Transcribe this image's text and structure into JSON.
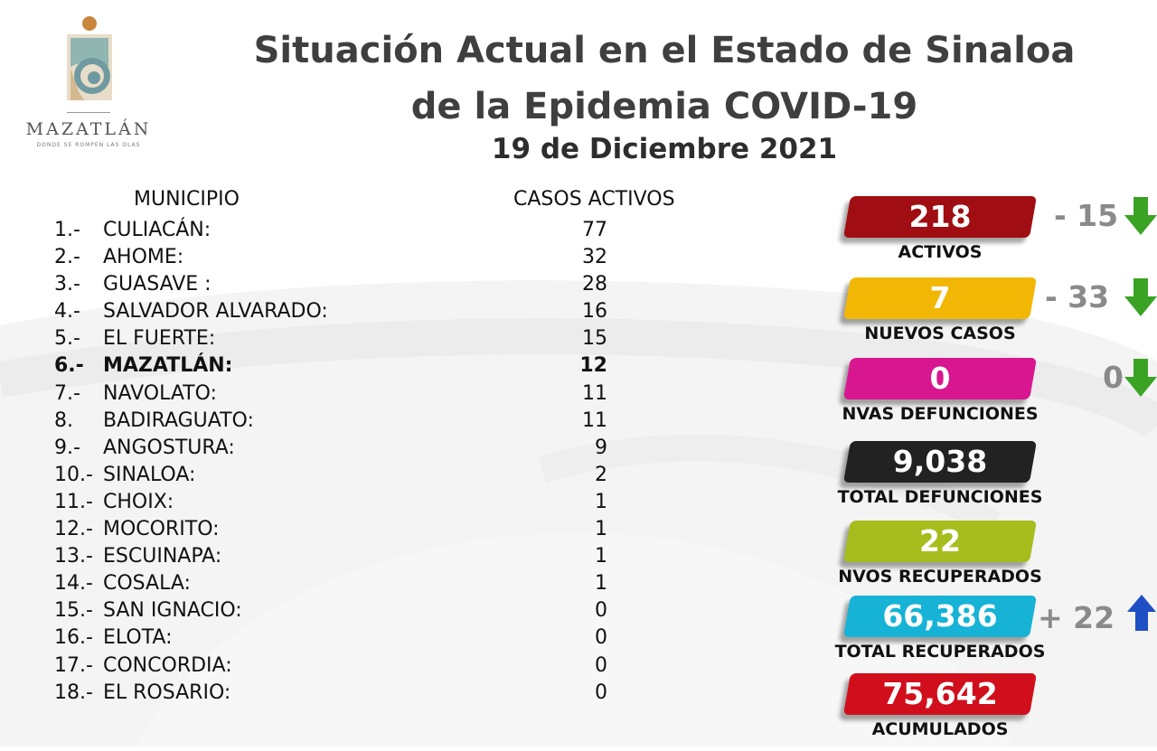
{
  "logo": {
    "word": "MAZATLÁN",
    "tagline": "DONDE SE ROMPEN LAS OLAS"
  },
  "title": {
    "line1": "Situación Actual en el Estado de Sinaloa",
    "line2": "de la Epidemia COVID-19",
    "date": "19 de Diciembre 2021"
  },
  "table": {
    "header_municipio": "MUNICIPIO",
    "header_casos": "CASOS ACTIVOS",
    "rows": [
      {
        "num": "1.-",
        "name": "CULIACÁN:",
        "value": "77"
      },
      {
        "num": "2.-",
        "name": "AHOME:",
        "value": "32"
      },
      {
        "num": "3.-",
        "name": "GUASAVE :",
        "value": "28"
      },
      {
        "num": "4.-",
        "name": "SALVADOR ALVARADO:",
        "value": "16"
      },
      {
        "num": "5.-",
        "name": "EL FUERTE:",
        "value": "15"
      },
      {
        "num": "6.-",
        "name": "MAZATLÁN:",
        "value": "12"
      },
      {
        "num": "7.-",
        "name": "NAVOLATO:",
        "value": "11"
      },
      {
        "num": "8.",
        "name": "BADIRAGUATO:",
        "value": "11"
      },
      {
        "num": "9.-",
        "name": "ANGOSTURA:",
        "value": "9"
      },
      {
        "num": "10.-",
        "name": "SINALOA:",
        "value": "2"
      },
      {
        "num": "11.-",
        "name": "CHOIX:",
        "value": "1"
      },
      {
        "num": "12.-",
        "name": "MOCORITO:",
        "value": "1"
      },
      {
        "num": "13.-",
        "name": "ESCUINAPA:",
        "value": "1"
      },
      {
        "num": "14.-",
        "name": "COSALA:",
        "value": "1"
      },
      {
        "num": "15.-",
        "name": "SAN IGNACIO:",
        "value": "0"
      },
      {
        "num": "16.-",
        "name": "ELOTA:",
        "value": "0"
      },
      {
        "num": "17.-",
        "name": "CONCORDIA:",
        "value": "0"
      },
      {
        "num": "18.-",
        "name": "EL ROSARIO:",
        "value": "0"
      }
    ]
  },
  "stats": {
    "activos": {
      "value": "218",
      "label": "ACTIVOS",
      "color": "#a00d12",
      "change": "-  15",
      "arrow": "down"
    },
    "nuevos_casos": {
      "value": "7",
      "label": "NUEVOS CASOS",
      "color": "#f2b705",
      "change": "-  33",
      "arrow": "down"
    },
    "nvas_defunciones": {
      "value": "0",
      "label": "NVAS DEFUNCIONES",
      "color": "#d8168f",
      "change": "0",
      "arrow": "down"
    },
    "total_defunciones": {
      "value": "9,038",
      "label": "TOTAL DEFUNCIONES",
      "color": "#222222"
    },
    "nvos_recuperados": {
      "value": "22",
      "label": "NVOS RECUPERADOS",
      "color": "#a6bd1e"
    },
    "total_recuperados": {
      "value": "66,386",
      "label": "TOTAL RECUPERADOS",
      "color": "#16b3d6",
      "change": "+  22",
      "arrow": "up"
    },
    "acumulados": {
      "value": "75,642",
      "label": "ACUMULADOS",
      "color": "#d10f1c"
    }
  },
  "colors": {
    "arrow_down": "#3aa324",
    "arrow_up": "#1f4fc4",
    "title": "#3f3f3f"
  }
}
